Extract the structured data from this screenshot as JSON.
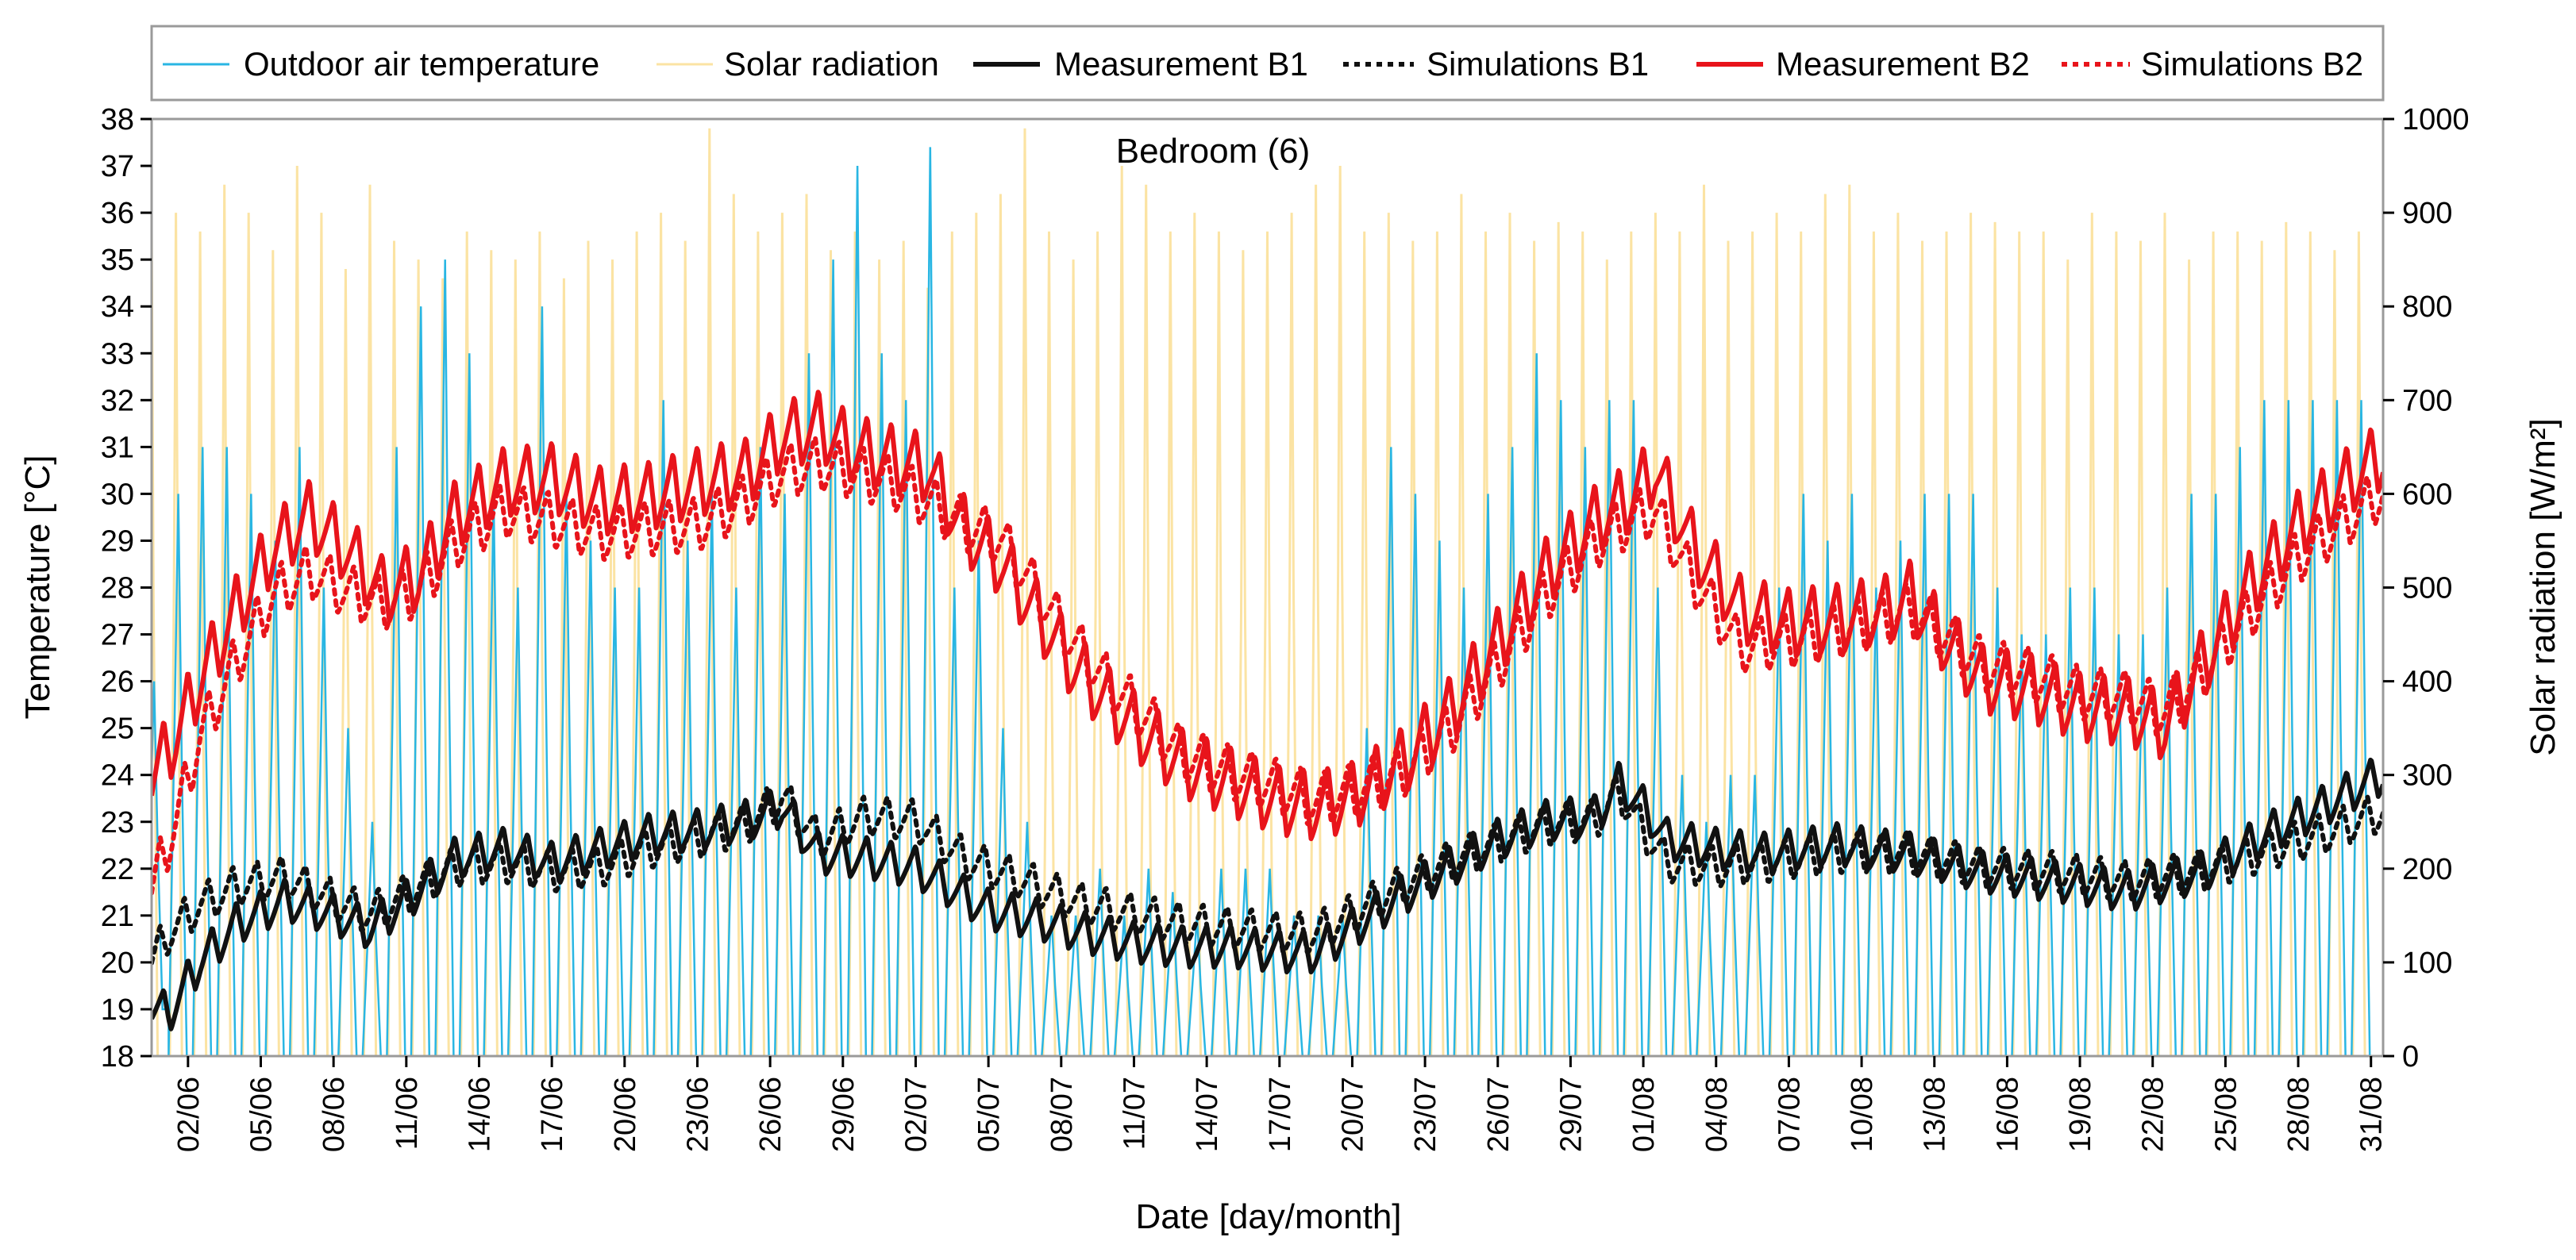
{
  "chart_data": {
    "type": "line",
    "title": "Bedroom (6)",
    "xlabel": "Date [day/month]",
    "ylabel": "Temperature [°C]",
    "ylabel_right": "Solar radiation [W/m²]",
    "x_start_day": 0.5,
    "x_end_day": 92.5,
    "x_tick_days": [
      2,
      5,
      8,
      11,
      14,
      17,
      20,
      23,
      26,
      29,
      32,
      35,
      38,
      41,
      44,
      47,
      50,
      53,
      56,
      59,
      62,
      65,
      68,
      71,
      74,
      77,
      80,
      83,
      86,
      89,
      92
    ],
    "x_tick_labels": [
      "02/06",
      "05/06",
      "08/06",
      "11/06",
      "14/06",
      "17/06",
      "20/06",
      "23/06",
      "26/06",
      "29/06",
      "02/07",
      "05/07",
      "08/07",
      "11/07",
      "14/07",
      "17/07",
      "20/07",
      "23/07",
      "26/07",
      "29/07",
      "01/08",
      "04/08",
      "07/08",
      "10/08",
      "13/08",
      "16/08",
      "19/08",
      "22/08",
      "25/08",
      "28/08",
      "31/08"
    ],
    "ylim": [
      18,
      38
    ],
    "y_ticks": [
      18,
      19,
      20,
      21,
      22,
      23,
      24,
      25,
      26,
      27,
      28,
      29,
      30,
      31,
      32,
      33,
      34,
      35,
      36,
      37,
      38
    ],
    "ylim_right": [
      0,
      1000
    ],
    "y_ticks_right": [
      0,
      100,
      200,
      300,
      400,
      500,
      600,
      700,
      800,
      900,
      1000
    ],
    "legend_position": "top",
    "colors": {
      "outdoor": "#29b6e3",
      "solar": "#fbe3a3",
      "b1": "#111111",
      "b2": "#e8141b",
      "frame": "#9a9a9a"
    },
    "series": [
      {
        "name": "Outdoor air temperature",
        "axis": "left",
        "style": "thin",
        "daily_max": [
          26,
          30,
          31,
          31,
          30,
          29,
          31,
          28,
          25,
          23,
          31,
          34,
          35,
          33,
          30,
          28,
          34,
          30,
          29,
          28,
          28,
          32,
          29,
          30,
          28,
          31,
          30,
          33,
          35,
          37,
          33,
          32,
          37.4,
          28,
          29,
          25,
          23,
          21,
          21,
          22,
          21,
          22,
          21.5,
          21,
          22,
          22,
          22,
          21,
          21,
          21,
          25,
          31,
          30,
          29,
          28,
          30,
          31,
          33,
          32,
          31,
          32,
          32,
          28,
          24,
          23,
          24,
          24,
          28,
          30,
          29,
          30,
          28,
          29,
          30,
          30,
          30,
          28,
          27,
          27,
          28,
          28,
          27,
          27,
          28,
          30,
          30,
          31,
          32,
          32,
          32,
          32,
          32
        ],
        "daily_min": [
          19,
          18,
          18,
          18,
          18,
          18,
          18,
          18,
          18,
          18,
          18,
          18,
          18,
          18,
          18,
          18,
          18,
          18,
          18,
          18,
          18,
          18,
          18,
          18,
          18,
          18,
          18,
          18,
          18,
          18,
          18,
          18,
          18,
          18,
          18,
          18,
          18,
          18,
          18,
          18,
          18,
          18,
          18,
          18,
          18,
          18,
          18,
          18,
          18,
          18,
          18,
          18,
          18,
          18,
          18,
          18,
          18,
          18,
          18,
          18,
          18,
          18,
          18,
          18,
          18,
          18,
          18,
          18,
          18,
          18,
          18,
          18,
          18,
          18,
          18,
          18,
          18,
          18,
          18,
          18,
          18,
          18,
          18,
          18,
          18,
          18,
          18,
          18,
          18,
          18,
          18,
          18
        ]
      },
      {
        "name": "Solar radiation",
        "axis": "right",
        "style": "thin",
        "daily_peak": [
          880,
          900,
          880,
          930,
          900,
          860,
          950,
          900,
          840,
          930,
          870,
          850,
          830,
          880,
          860,
          850,
          880,
          830,
          870,
          850,
          880,
          900,
          870,
          990,
          920,
          880,
          900,
          920,
          860,
          880,
          850,
          870,
          820,
          880,
          900,
          920,
          990,
          880,
          850,
          880,
          950,
          930,
          880,
          900,
          880,
          860,
          880,
          900,
          930,
          950,
          880,
          900,
          870,
          880,
          920,
          880,
          900,
          870,
          890,
          880,
          850,
          880,
          900,
          880,
          930,
          870,
          880,
          900,
          880,
          920,
          930,
          880,
          900,
          870,
          880,
          900,
          890,
          880,
          880,
          850,
          900,
          880,
          870,
          900,
          850,
          880,
          880,
          870,
          890,
          880,
          860,
          880
        ]
      },
      {
        "name": "Measurement B1",
        "axis": "left",
        "style": "solid",
        "key_days": [
          0.5,
          1.2,
          2.5,
          4,
          6,
          8,
          9.5,
          11,
          13,
          15,
          17,
          19,
          21,
          23,
          25,
          26.5,
          28,
          30,
          32,
          34,
          35,
          37,
          39,
          41,
          43,
          45,
          47,
          48.5,
          50,
          52,
          54,
          56,
          58,
          60,
          61,
          62,
          63,
          65,
          67,
          70,
          73,
          76,
          79,
          82,
          85,
          88,
          90,
          92.5
        ],
        "key_values": [
          19.0,
          18.9,
          20.0,
          20.8,
          21.3,
          21.0,
          20.7,
          21.3,
          22.2,
          22.4,
          22.1,
          22.4,
          22.7,
          22.8,
          23.0,
          23.3,
          22.3,
          22.2,
          22.0,
          21.4,
          21.1,
          20.9,
          20.6,
          20.4,
          20.3,
          20.3,
          20.2,
          20.2,
          20.7,
          21.4,
          22.0,
          22.6,
          23.0,
          23.1,
          23.8,
          23.3,
          22.6,
          22.4,
          22.3,
          22.5,
          22.3,
          21.9,
          21.7,
          21.5,
          21.9,
          22.8,
          23.3,
          24.0
        ],
        "daily_amplitude": 0.9
      },
      {
        "name": "Simulations B1",
        "axis": "left",
        "style": "dotted",
        "key_days": [
          0.5,
          1.2,
          2.5,
          4,
          6,
          8,
          9.5,
          11,
          13,
          15,
          17,
          19,
          21,
          23,
          25,
          26.5,
          28,
          30,
          32,
          34,
          35,
          37,
          39,
          41,
          43,
          45,
          47,
          48.5,
          50,
          52,
          54,
          56,
          58,
          60,
          61,
          62,
          63,
          65,
          67,
          70,
          73,
          76,
          79,
          82,
          85,
          88,
          90,
          92.5
        ],
        "key_values": [
          20.0,
          20.6,
          21.2,
          21.6,
          21.8,
          21.3,
          21.0,
          21.4,
          22.0,
          22.1,
          21.9,
          22.0,
          22.4,
          22.6,
          22.9,
          23.5,
          22.6,
          23.1,
          23.0,
          22.2,
          22.0,
          21.6,
          21.2,
          21.0,
          20.8,
          20.7,
          20.6,
          20.6,
          21.0,
          21.6,
          22.1,
          22.5,
          22.9,
          23.0,
          23.6,
          22.8,
          22.1,
          22.0,
          22.1,
          22.3,
          22.3,
          22.0,
          21.9,
          21.7,
          21.9,
          22.4,
          22.7,
          23.2
        ],
        "daily_amplitude": 0.9
      },
      {
        "name": "Measurement B2",
        "axis": "left",
        "style": "solid",
        "key_days": [
          0.5,
          1.5,
          2.5,
          4,
          5.5,
          7,
          8.5,
          10,
          11.5,
          13,
          15,
          17,
          19,
          21,
          23,
          25,
          26.5,
          28,
          29.5,
          31,
          32.5,
          34,
          35.5,
          37,
          38.5,
          40,
          41.5,
          43,
          45,
          47,
          48.5,
          50,
          52,
          54,
          56,
          58,
          60,
          61.5,
          62.5,
          64,
          66,
          68,
          70,
          72,
          73,
          74.5,
          76,
          78,
          80,
          82,
          83.5,
          85,
          87,
          89,
          91,
          92.5
        ],
        "key_values": [
          23.9,
          24.8,
          26.0,
          27.5,
          28.8,
          29.5,
          28.8,
          27.9,
          28.2,
          29.5,
          30.2,
          30.3,
          29.8,
          29.9,
          30.2,
          30.4,
          31.2,
          31.4,
          30.9,
          30.7,
          30.5,
          29.2,
          28.5,
          27.4,
          26.3,
          25.5,
          24.8,
          24.2,
          23.8,
          23.4,
          23.3,
          23.5,
          24.2,
          25.3,
          26.8,
          28.3,
          29.4,
          29.9,
          30.5,
          28.9,
          27.5,
          27.2,
          27.3,
          27.5,
          27.8,
          26.8,
          26.0,
          25.8,
          25.4,
          25.3,
          25.0,
          26.3,
          28.0,
          29.3,
          30.2,
          30.8
        ],
        "daily_amplitude": 1.5
      },
      {
        "name": "Simulations B2",
        "axis": "left",
        "style": "dotted",
        "key_days": [
          0.5,
          1.5,
          2.5,
          4,
          5.5,
          7,
          8.5,
          10,
          11.5,
          13,
          15,
          17,
          19,
          21,
          23,
          25,
          26.5,
          28,
          29.5,
          31,
          32.5,
          34,
          35.5,
          37,
          38.5,
          40,
          41.5,
          43,
          45,
          47,
          48.5,
          50,
          52,
          54,
          56,
          58,
          60,
          61.5,
          62.5,
          64,
          66,
          68,
          70,
          72,
          73,
          74.5,
          76,
          78,
          80,
          82,
          83.5,
          85,
          87,
          89,
          91,
          92.5
        ],
        "key_values": [
          21.5,
          23.0,
          24.8,
          26.4,
          27.8,
          28.3,
          27.9,
          27.6,
          27.9,
          28.9,
          29.6,
          29.4,
          29.1,
          29.2,
          29.3,
          29.8,
          30.4,
          30.6,
          30.4,
          30.2,
          29.8,
          29.3,
          29.0,
          27.9,
          26.8,
          25.9,
          25.2,
          24.4,
          24.0,
          23.7,
          23.4,
          23.6,
          24.0,
          24.9,
          26.3,
          27.8,
          28.9,
          29.4,
          29.6,
          28.2,
          26.7,
          26.8,
          27.0,
          27.3,
          27.5,
          26.9,
          26.3,
          26.1,
          25.7,
          25.6,
          25.3,
          26.1,
          27.4,
          28.6,
          29.4,
          30.0
        ],
        "daily_amplitude": 1.2
      }
    ]
  }
}
